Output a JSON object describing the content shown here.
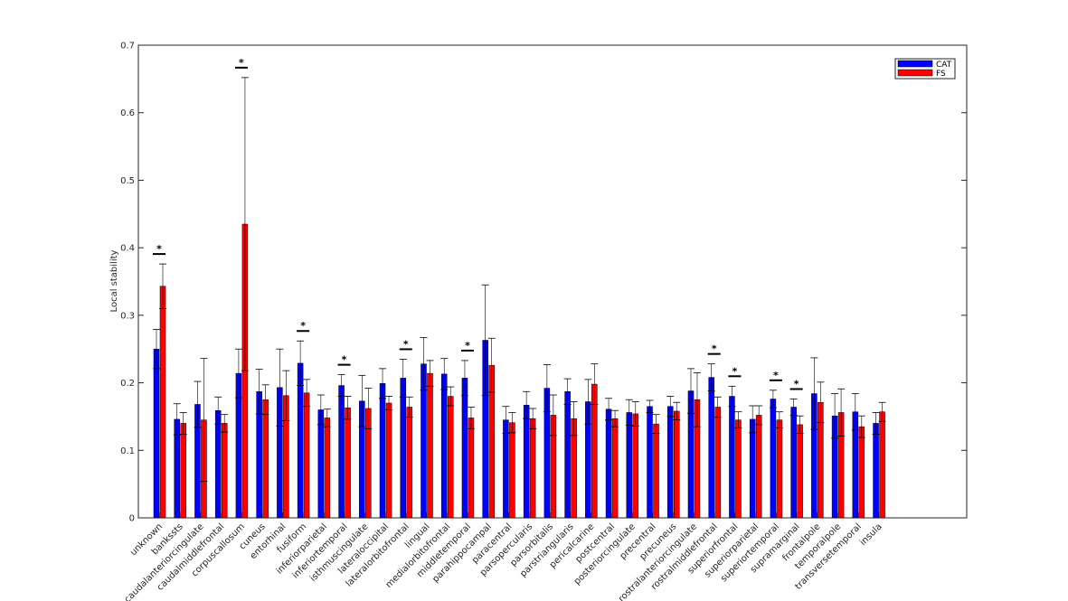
{
  "chart_data": {
    "type": "bar",
    "title": "",
    "xlabel": "",
    "ylabel": "Local stability",
    "ylim": [
      0,
      0.7
    ],
    "yticks": [
      "0",
      "0.1",
      "0.2",
      "0.3",
      "0.4",
      "0.5",
      "0.6",
      "0.7"
    ],
    "significance_marker": "*",
    "legend_position": "top-right",
    "categories": [
      "unknown",
      "bankssts",
      "caudalanteriorcingulate",
      "caudalmiddlefrontal",
      "corpuscallosum",
      "cuneus",
      "entorhinal",
      "fusiform",
      "inferiorparietal",
      "inferiortemporal",
      "isthmuscingulate",
      "lateraloccipital",
      "lateralorbitofrontal",
      "lingual",
      "medialorbitofrontal",
      "middletemporal",
      "parahippocampal",
      "paracentral",
      "parsopercularis",
      "parsorbitalis",
      "parstriangularis",
      "pericalcarine",
      "postcentral",
      "posteriorcingulate",
      "precentral",
      "precuneus",
      "rostralanteriorcingulate",
      "rostralmiddlefrontal",
      "superiorfrontal",
      "superiorparietal",
      "superiortemporal",
      "supramarginal",
      "frontalpole",
      "temporalpole",
      "transversetemporal",
      "insula"
    ],
    "series": [
      {
        "name": "CAT",
        "color": "#0000ff",
        "values": [
          0.25,
          0.146,
          0.168,
          0.159,
          0.214,
          0.187,
          0.193,
          0.229,
          0.16,
          0.196,
          0.173,
          0.199,
          0.207,
          0.228,
          0.213,
          0.207,
          0.263,
          0.145,
          0.167,
          0.192,
          0.187,
          0.172,
          0.161,
          0.156,
          0.165,
          0.165,
          0.188,
          0.208,
          0.18,
          0.146,
          0.176,
          0.164,
          0.184,
          0.151,
          0.157,
          0.14
        ],
        "errors": [
          0.029,
          0.023,
          0.034,
          0.02,
          0.036,
          0.033,
          0.057,
          0.033,
          0.022,
          0.016,
          0.038,
          0.022,
          0.028,
          0.039,
          0.023,
          0.026,
          0.082,
          0.02,
          0.02,
          0.035,
          0.019,
          0.033,
          0.016,
          0.019,
          0.009,
          0.015,
          0.033,
          0.02,
          0.015,
          0.02,
          0.013,
          0.012,
          0.053,
          0.033,
          0.027,
          0.016
        ]
      },
      {
        "name": "FS",
        "color": "#ff0000",
        "values": [
          0.343,
          0.14,
          0.145,
          0.14,
          0.435,
          0.175,
          0.181,
          0.185,
          0.148,
          0.163,
          0.162,
          0.17,
          0.164,
          0.214,
          0.18,
          0.148,
          0.226,
          0.141,
          0.147,
          0.152,
          0.147,
          0.198,
          0.147,
          0.154,
          0.139,
          0.158,
          0.175,
          0.164,
          0.145,
          0.152,
          0.145,
          0.138,
          0.171,
          0.156,
          0.135,
          0.157
        ],
        "errors": [
          0.033,
          0.016,
          0.091,
          0.013,
          0.217,
          0.022,
          0.037,
          0.02,
          0.013,
          0.017,
          0.03,
          0.01,
          0.015,
          0.019,
          0.014,
          0.016,
          0.04,
          0.015,
          0.015,
          0.03,
          0.025,
          0.03,
          0.012,
          0.018,
          0.014,
          0.013,
          0.04,
          0.015,
          0.012,
          0.014,
          0.012,
          0.013,
          0.03,
          0.035,
          0.016,
          0.014
        ]
      }
    ],
    "significant_indices": [
      0,
      4,
      7,
      9,
      12,
      15,
      27,
      28,
      30,
      31
    ]
  }
}
